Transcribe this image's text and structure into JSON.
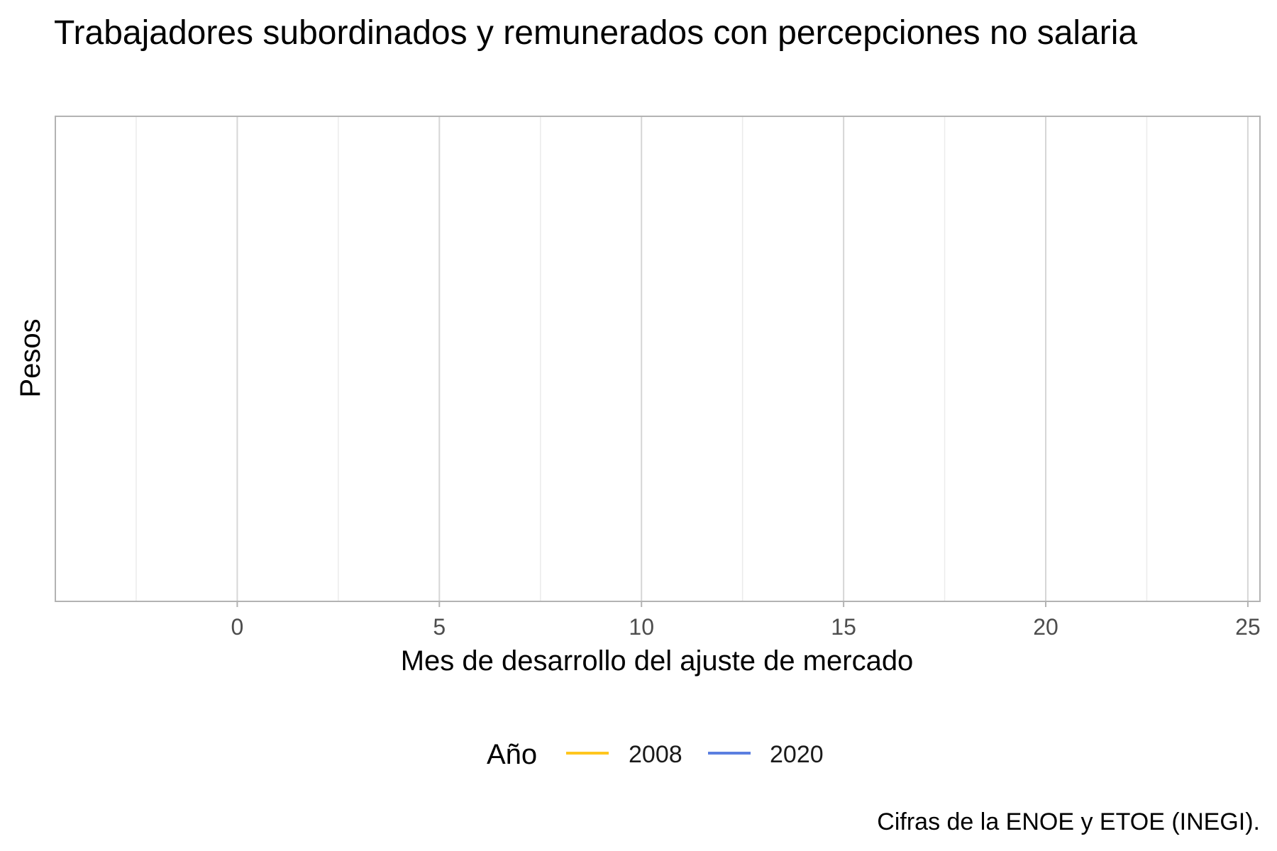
{
  "chart_data": {
    "type": "line",
    "title": "Trabajadores subordinados y remunerados con percepciones no salaria",
    "xlabel": "Mes de desarrollo del ajuste de mercado",
    "ylabel": "Pesos",
    "caption": "Cifras de la ENOE y ETOE (INEGI).",
    "xlim": [
      -4.5,
      25.3
    ],
    "x_ticks": [
      0,
      5,
      10,
      15,
      20,
      25
    ],
    "x_tick_labels": [
      "0",
      "5",
      "10",
      "15",
      "20",
      "25"
    ],
    "x_minor_ticks": [
      -2.5,
      2.5,
      7.5,
      12.5,
      17.5,
      22.5
    ],
    "grid": true,
    "legend": {
      "title": "Año",
      "placement": "bottom",
      "entries": [
        {
          "label": "2008",
          "color": "#FFC61E"
        },
        {
          "label": "2020",
          "color": "#5B7FE0"
        }
      ]
    },
    "series": [
      {
        "name": "2008",
        "color": "#FFC61E",
        "x": [],
        "y": []
      },
      {
        "name": "2020",
        "color": "#5B7FE0",
        "x": [],
        "y": []
      }
    ]
  }
}
